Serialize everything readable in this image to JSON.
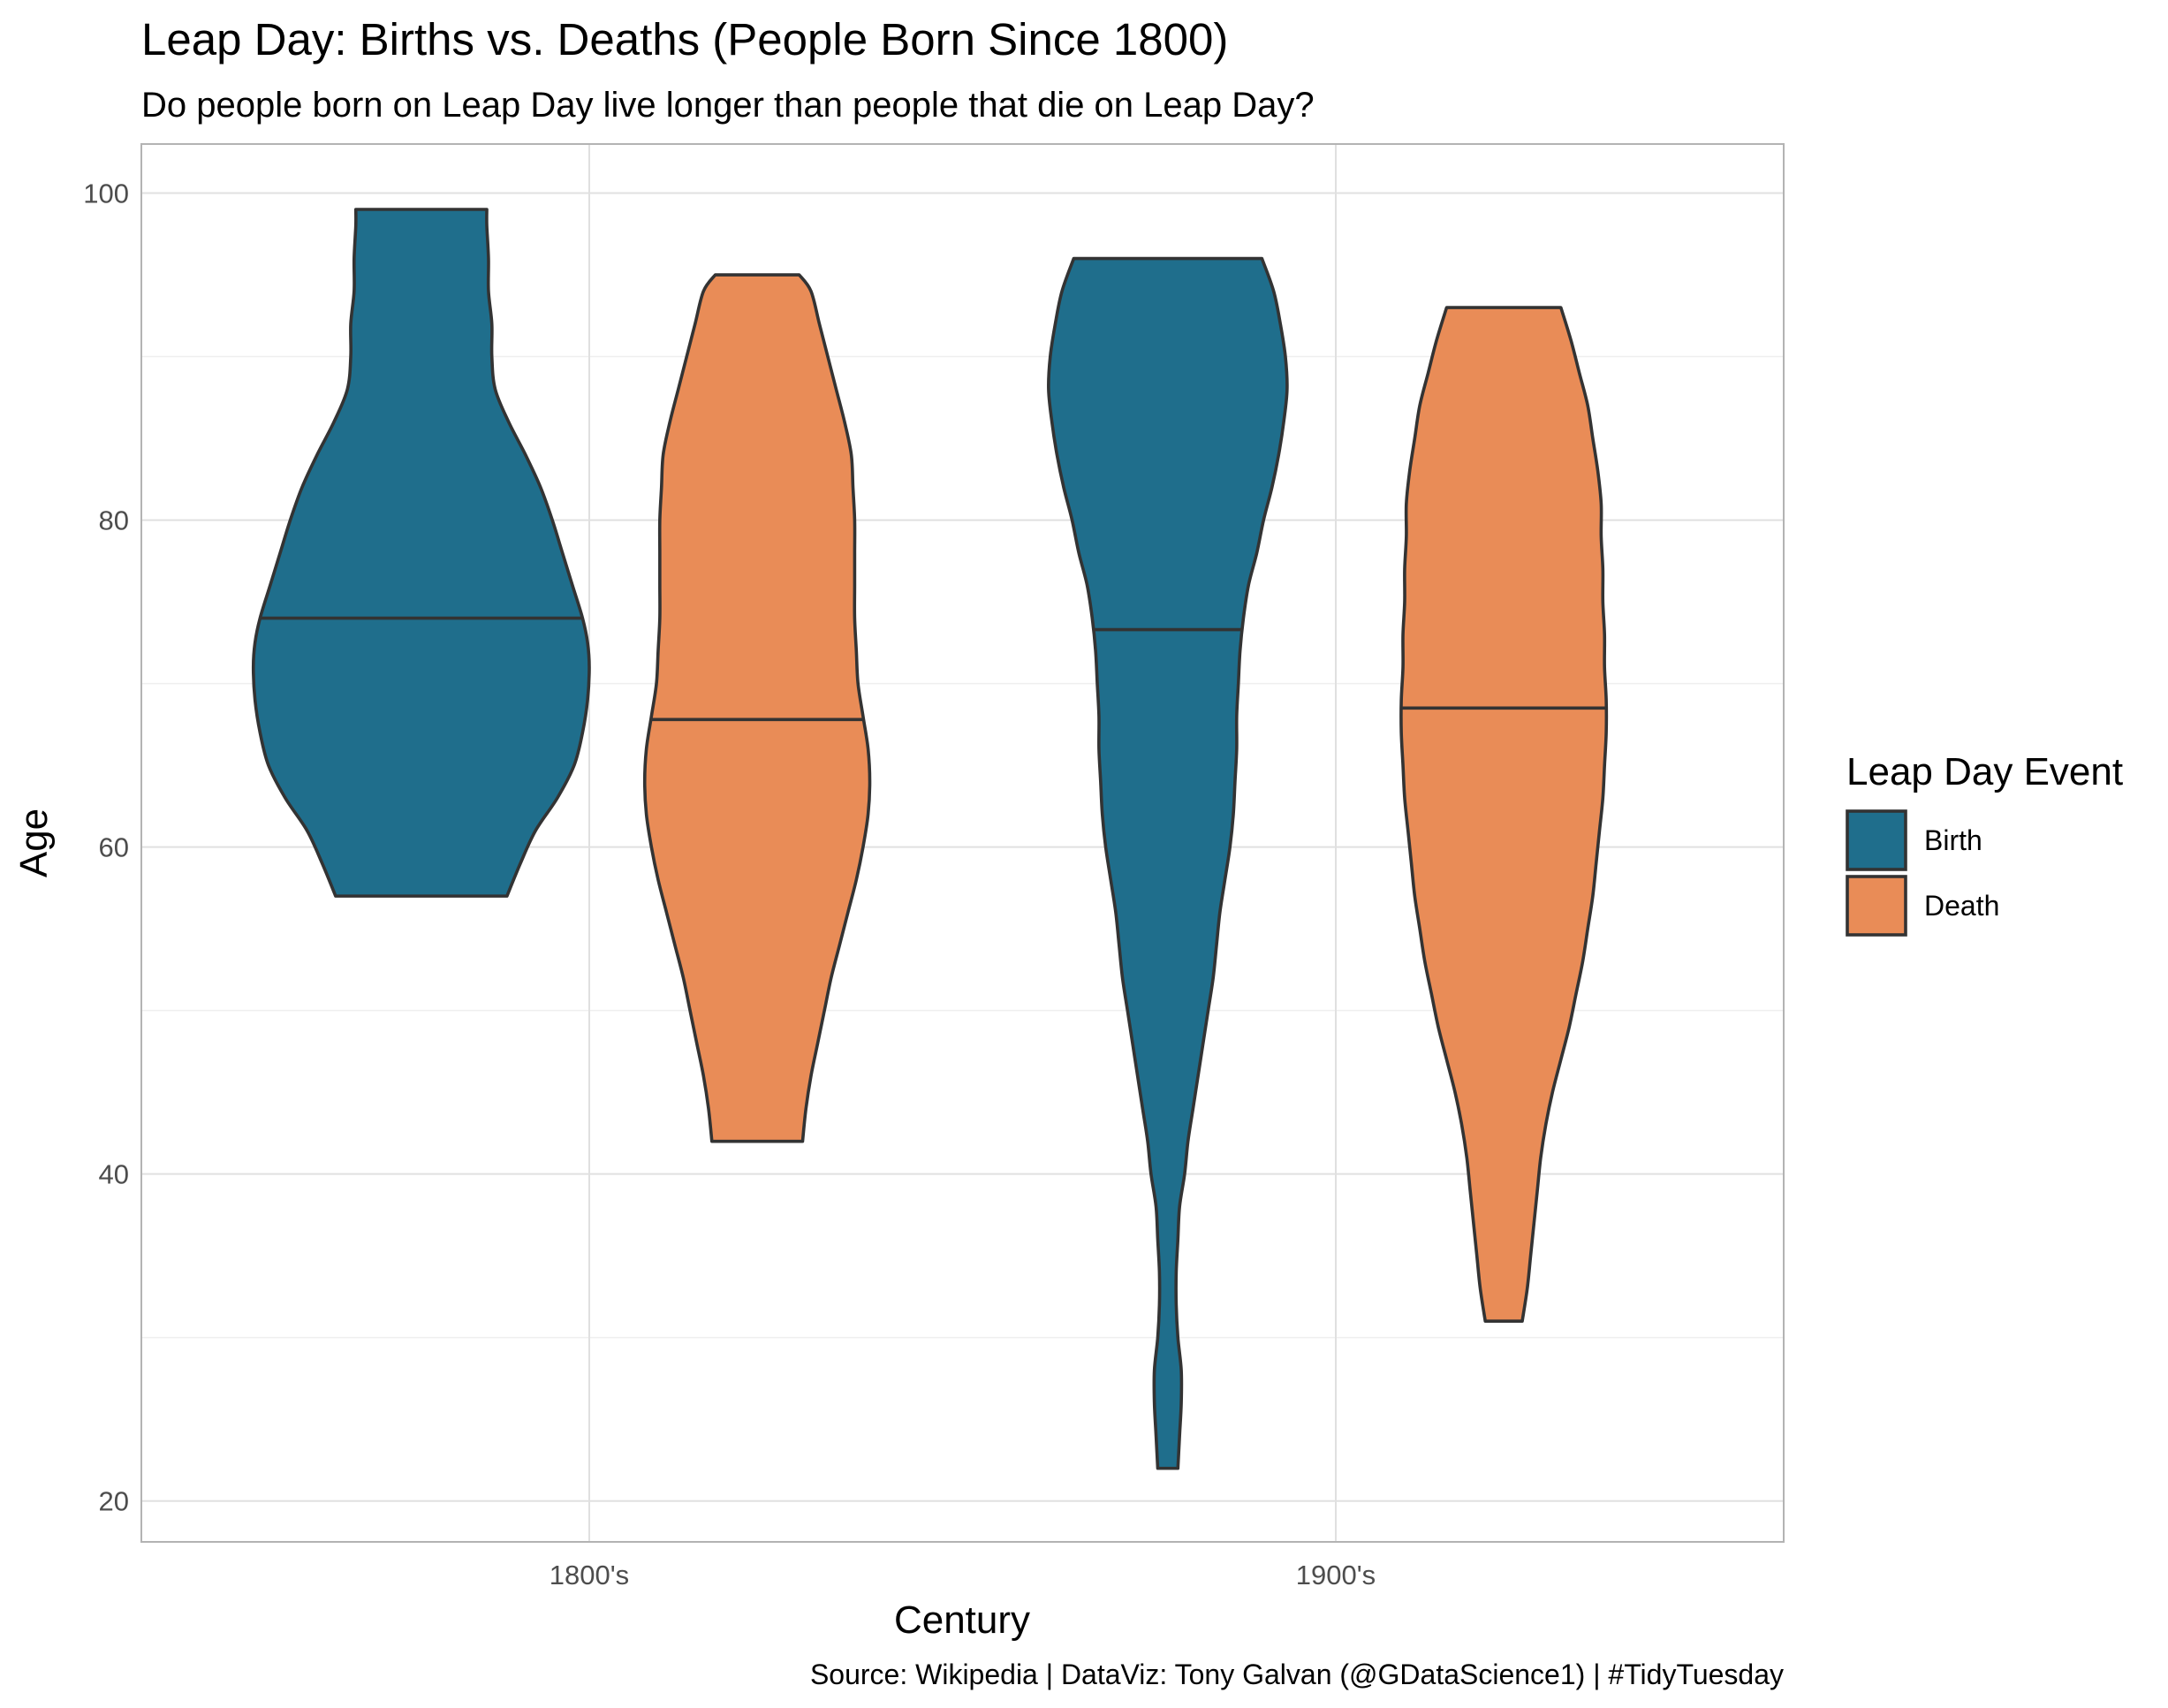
{
  "chart_data": {
    "type": "violin",
    "title": "Leap Day: Births vs. Deaths (People Born Since 1800)",
    "subtitle": "Do people born on Leap Day live longer than people that die on Leap Day?",
    "xlabel": "Century",
    "ylabel": "Age",
    "caption": "Source: Wikipedia | DataViz: Tony Galvan (@GDataScience1) | #TidyTuesday",
    "categories": [
      "1800's",
      "1900's"
    ],
    "ylim": [
      17.5,
      103
    ],
    "yticks": [
      20,
      40,
      60,
      80,
      100
    ],
    "grid": true,
    "legend": {
      "title": "Leap Day Event",
      "position": "right",
      "entries": [
        "Birth",
        "Death"
      ]
    },
    "colors": {
      "Birth": "#1f6e8c",
      "Death": "#e98c57"
    },
    "series": [
      {
        "name": "Birth",
        "violins": [
          {
            "category": "1800's",
            "min": 57,
            "max": 99,
            "median": 74,
            "density": [
              [
                57,
                0.51
              ],
              [
                59,
                0.59
              ],
              [
                61,
                0.68
              ],
              [
                63,
                0.81
              ],
              [
                65,
                0.91
              ],
              [
                67,
                0.96
              ],
              [
                69,
                0.99
              ],
              [
                71,
                1.0
              ],
              [
                72.5,
                0.99
              ],
              [
                74,
                0.96
              ],
              [
                76,
                0.9
              ],
              [
                78,
                0.84
              ],
              [
                80,
                0.78
              ],
              [
                82,
                0.71
              ],
              [
                84,
                0.62
              ],
              [
                86,
                0.52
              ],
              [
                88,
                0.44
              ],
              [
                90,
                0.42
              ],
              [
                92,
                0.42
              ],
              [
                94,
                0.4
              ],
              [
                96,
                0.4
              ],
              [
                98,
                0.39
              ],
              [
                99,
                0.39
              ]
            ]
          },
          {
            "category": "1900's",
            "min": 22,
            "max": 96,
            "median": 73.3,
            "density": [
              [
                22,
                0.06
              ],
              [
                24,
                0.07
              ],
              [
                26,
                0.08
              ],
              [
                28,
                0.08
              ],
              [
                30,
                0.06
              ],
              [
                32,
                0.05
              ],
              [
                34,
                0.05
              ],
              [
                36,
                0.06
              ],
              [
                38,
                0.07
              ],
              [
                40,
                0.1
              ],
              [
                42,
                0.12
              ],
              [
                44,
                0.15
              ],
              [
                46,
                0.18
              ],
              [
                48,
                0.21
              ],
              [
                50,
                0.24
              ],
              [
                52,
                0.27
              ],
              [
                54,
                0.29
              ],
              [
                56,
                0.31
              ],
              [
                58,
                0.34
              ],
              [
                60,
                0.37
              ],
              [
                62,
                0.39
              ],
              [
                64,
                0.4
              ],
              [
                66,
                0.41
              ],
              [
                68,
                0.41
              ],
              [
                70,
                0.42
              ],
              [
                72,
                0.43
              ],
              [
                74,
                0.45
              ],
              [
                76,
                0.48
              ],
              [
                78,
                0.53
              ],
              [
                80,
                0.57
              ],
              [
                82,
                0.62
              ],
              [
                84,
                0.66
              ],
              [
                86,
                0.69
              ],
              [
                88,
                0.71
              ],
              [
                90,
                0.7
              ],
              [
                92,
                0.67
              ],
              [
                94,
                0.63
              ],
              [
                96,
                0.56
              ]
            ]
          }
        ]
      },
      {
        "name": "Death",
        "violins": [
          {
            "category": "1800's",
            "min": 42,
            "max": 95,
            "median": 67.8,
            "density": [
              [
                42,
                0.27
              ],
              [
                44,
                0.29
              ],
              [
                46,
                0.32
              ],
              [
                48,
                0.36
              ],
              [
                50,
                0.4
              ],
              [
                52,
                0.44
              ],
              [
                54,
                0.49
              ],
              [
                56,
                0.54
              ],
              [
                58,
                0.59
              ],
              [
                60,
                0.63
              ],
              [
                62,
                0.66
              ],
              [
                64,
                0.67
              ],
              [
                66,
                0.66
              ],
              [
                68,
                0.63
              ],
              [
                70,
                0.6
              ],
              [
                72,
                0.59
              ],
              [
                74,
                0.58
              ],
              [
                76,
                0.58
              ],
              [
                78,
                0.58
              ],
              [
                80,
                0.58
              ],
              [
                82,
                0.57
              ],
              [
                84,
                0.56
              ],
              [
                86,
                0.52
              ],
              [
                88,
                0.47
              ],
              [
                90,
                0.42
              ],
              [
                92,
                0.37
              ],
              [
                94,
                0.32
              ],
              [
                95,
                0.25
              ]
            ]
          },
          {
            "category": "1900's",
            "min": 31,
            "max": 93,
            "median": 68.5,
            "density": [
              [
                31,
                0.11
              ],
              [
                33,
                0.14
              ],
              [
                35,
                0.16
              ],
              [
                37,
                0.18
              ],
              [
                39,
                0.2
              ],
              [
                41,
                0.22
              ],
              [
                43,
                0.25
              ],
              [
                45,
                0.29
              ],
              [
                47,
                0.34
              ],
              [
                49,
                0.39
              ],
              [
                51,
                0.43
              ],
              [
                53,
                0.47
              ],
              [
                55,
                0.5
              ],
              [
                57,
                0.53
              ],
              [
                59,
                0.55
              ],
              [
                61,
                0.57
              ],
              [
                63,
                0.59
              ],
              [
                65,
                0.6
              ],
              [
                67,
                0.61
              ],
              [
                69,
                0.61
              ],
              [
                71,
                0.6
              ],
              [
                73,
                0.6
              ],
              [
                75,
                0.59
              ],
              [
                77,
                0.59
              ],
              [
                79,
                0.58
              ],
              [
                81,
                0.58
              ],
              [
                83,
                0.56
              ],
              [
                85,
                0.53
              ],
              [
                87,
                0.5
              ],
              [
                89,
                0.45
              ],
              [
                91,
                0.4
              ],
              [
                93,
                0.34
              ]
            ]
          }
        ]
      }
    ]
  }
}
